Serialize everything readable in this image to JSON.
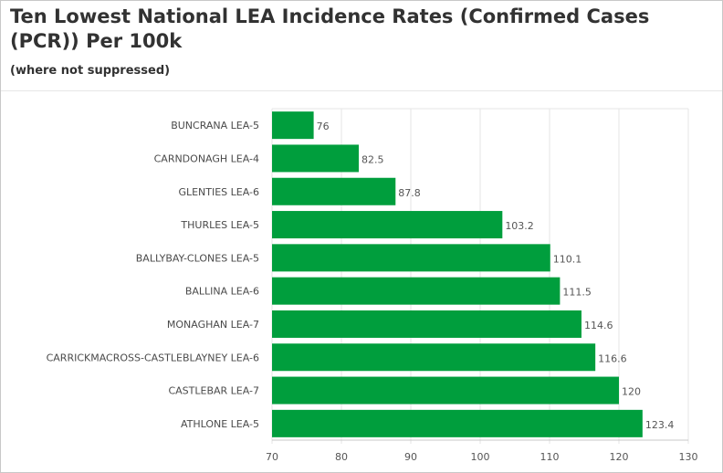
{
  "header": {
    "title": "Ten Lowest National LEA Incidence Rates (Confirmed Cases (PCR)) Per 100k",
    "subtitle": "(where not suppressed)"
  },
  "colors": {
    "bar": "#009e3d",
    "grid": "#e6e6e6",
    "axis": "#c8c8c8"
  },
  "chart_data": {
    "type": "bar",
    "orientation": "horizontal",
    "title": "Ten Lowest National LEA Incidence Rates (Confirmed Cases (PCR)) Per 100k",
    "subtitle": "(where not suppressed)",
    "categories": [
      "BUNCRANA LEA-5",
      "CARNDONAGH LEA-4",
      "GLENTIES LEA-6",
      "THURLES LEA-5",
      "BALLYBAY-CLONES LEA-5",
      "BALLINA LEA-6",
      "MONAGHAN LEA-7",
      "CARRICKMACROSS-CASTLEBLAYNEY LEA-6",
      "CASTLEBAR LEA-7",
      "ATHLONE LEA-5"
    ],
    "values": [
      76,
      82.5,
      87.8,
      103.2,
      110.1,
      111.5,
      114.6,
      116.6,
      120,
      123.4
    ],
    "value_labels": [
      "76",
      "82.5",
      "87.8",
      "103.2",
      "110.1",
      "111.5",
      "114.6",
      "116.6",
      "120",
      "123.4"
    ],
    "xlim": [
      70,
      130
    ],
    "xticks": [
      70,
      80,
      90,
      100,
      110,
      120,
      130
    ],
    "xtick_labels": [
      "70",
      "80",
      "90",
      "100",
      "110",
      "120",
      "130"
    ],
    "grid": true,
    "legend": "none"
  }
}
